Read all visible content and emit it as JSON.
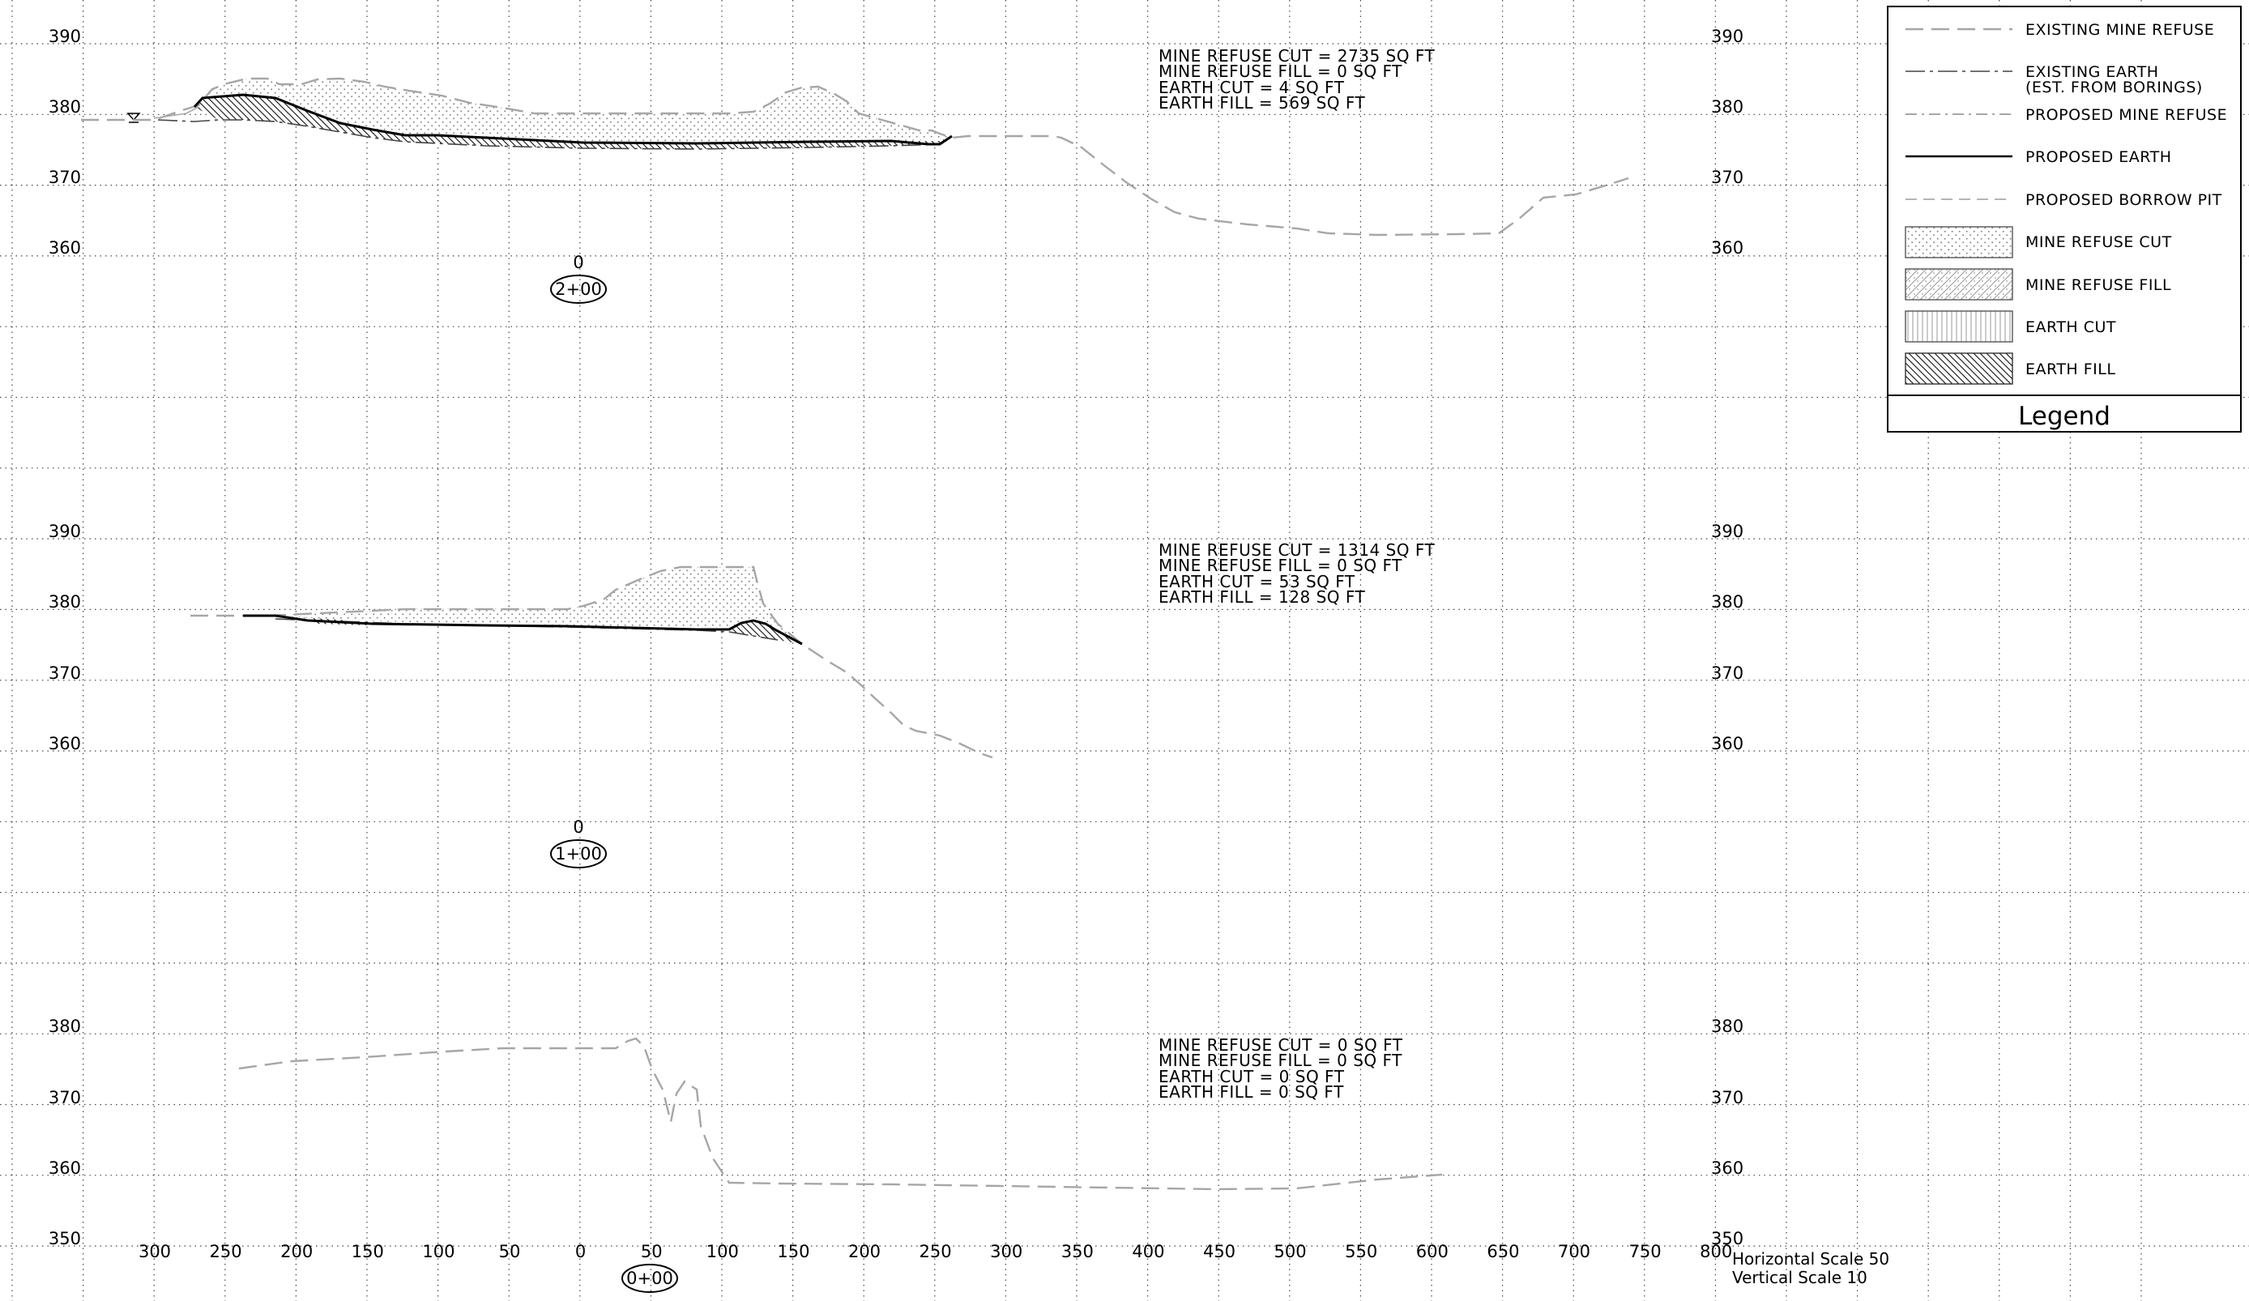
{
  "sections": [
    {
      "id": "section-2+00",
      "station": "2+00",
      "center_label": "0",
      "elevation_labels": [
        "390",
        "380",
        "370",
        "360"
      ],
      "quantities": [
        "MINE REFUSE CUT = 2735 SQ FT",
        "MINE REFUSE FILL = 0 SQ FT",
        "EARTH CUT = 4 SQ FT",
        "EARTH FILL = 569 SQ FT"
      ]
    },
    {
      "id": "section-1+00",
      "station": "1+00",
      "center_label": "0",
      "elevation_labels": [
        "390",
        "380",
        "370",
        "360"
      ],
      "quantities": [
        "MINE REFUSE CUT = 1314 SQ FT",
        "MINE REFUSE FILL = 0 SQ FT",
        "EARTH CUT = 53 SQ FT",
        "EARTH FILL = 128 SQ FT"
      ]
    },
    {
      "id": "section-0+00",
      "station": "0+00",
      "elevation_labels": [
        "380",
        "370",
        "360",
        "350"
      ],
      "quantities": [
        "MINE REFUSE CUT = 0 SQ FT",
        "MINE REFUSE FILL = 0 SQ FT",
        "EARTH CUT = 0 SQ FT",
        "EARTH FILL = 0 SQ FT"
      ]
    }
  ],
  "offset_labels": [
    "300",
    "250",
    "200",
    "150",
    "100",
    "50",
    "0",
    "50",
    "100",
    "150",
    "200",
    "250",
    "300",
    "350",
    "400",
    "450",
    "500",
    "550",
    "600",
    "650",
    "700",
    "750",
    "800"
  ],
  "scale": {
    "horizontal": "Horizontal Scale 50",
    "vertical": "Vertical Scale 10"
  },
  "legend": {
    "title": "Legend",
    "items": [
      {
        "label": "EXISTING MINE REFUSE",
        "symbol": "dashed-gray-line"
      },
      {
        "label": "EXISTING EARTH",
        "label2": "(EST. FROM BORINGS)",
        "symbol": "dash-dot-line"
      },
      {
        "label": "PROPOSED MINE REFUSE",
        "symbol": "dash-dot-gray-line"
      },
      {
        "label": "PROPOSED EARTH",
        "symbol": "solid-black-line"
      },
      {
        "label": "PROPOSED BORROW PIT",
        "symbol": "dashed-light-line"
      },
      {
        "label": "MINE REFUSE CUT",
        "symbol": "dot-pattern-swatch"
      },
      {
        "label": "MINE REFUSE FILL",
        "symbol": "crosshatch-swatch"
      },
      {
        "label": "EARTH CUT",
        "symbol": "vertical-line-swatch"
      },
      {
        "label": "EARTH FILL",
        "symbol": "diagonal-hatch-swatch"
      }
    ]
  }
}
